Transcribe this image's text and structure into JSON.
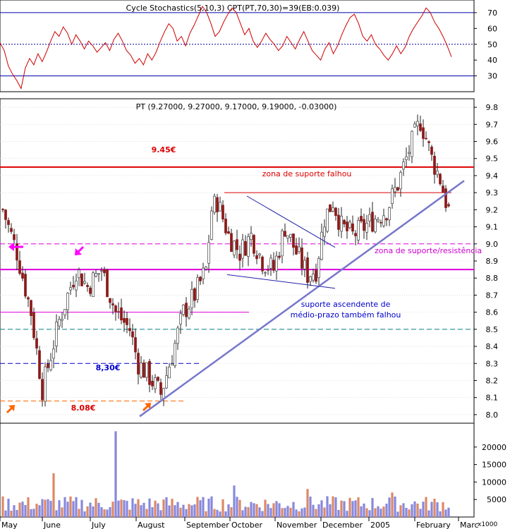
{
  "chart_data": [
    {
      "type": "line",
      "title": "Cycle Stochastics(5,10,3) CPT(PT,70,30)=39(EB:0.039)",
      "ylim": [
        20,
        78
      ],
      "y_ticks": [
        30,
        40,
        50,
        60,
        70
      ],
      "reference_lines": [
        70,
        50,
        30
      ],
      "series": [
        {
          "values": [
            51,
            46,
            36,
            31,
            27,
            22,
            35,
            41,
            37,
            44,
            39,
            45,
            52,
            58,
            55,
            61,
            57,
            50,
            56,
            52,
            47,
            52,
            49,
            45,
            48,
            51,
            46,
            53,
            57,
            52,
            46,
            43,
            38,
            41,
            37,
            44,
            40,
            45,
            52,
            58,
            63,
            60,
            52,
            55,
            49,
            57,
            62,
            68,
            74,
            70,
            63,
            55,
            58,
            64,
            69,
            73,
            70,
            63,
            56,
            60,
            52,
            48,
            52,
            57,
            53,
            50,
            46,
            49,
            55,
            51,
            47,
            53,
            58,
            52,
            46,
            43,
            40,
            47,
            51,
            44,
            49,
            56,
            62,
            67,
            69,
            63,
            55,
            52,
            56,
            50,
            47,
            43,
            40,
            44,
            49,
            44,
            48,
            55,
            60,
            64,
            68,
            73,
            70,
            64,
            60,
            55,
            49,
            42
          ]
        }
      ]
    },
    {
      "type": "bar",
      "title": "PT (9.27000, 9.27000, 9.17000, 9.19000, -0.03000)",
      "xlabel": "",
      "ylabel": "",
      "ylim": [
        7.95,
        9.85
      ],
      "y_ticks": [
        8.0,
        8.1,
        8.2,
        8.3,
        8.4,
        8.5,
        8.6,
        8.7,
        8.8,
        8.9,
        9.0,
        9.1,
        9.2,
        9.3,
        9.4,
        9.5,
        9.6,
        9.7,
        9.8
      ],
      "x_ticks": [
        "May",
        "June",
        "July",
        "August",
        "September",
        "October",
        "November",
        "December",
        "2005",
        "February",
        "Marc"
      ],
      "anchors": [
        [
          0,
          9.2
        ],
        [
          5,
          8.95
        ],
        [
          10,
          8.6
        ],
        [
          14,
          8.15
        ],
        [
          17,
          8.35
        ],
        [
          20,
          8.55
        ],
        [
          26,
          8.85
        ],
        [
          30,
          8.75
        ],
        [
          35,
          8.85
        ],
        [
          40,
          8.6
        ],
        [
          45,
          8.5
        ],
        [
          48,
          8.3
        ],
        [
          52,
          8.22
        ],
        [
          56,
          8.12
        ],
        [
          60,
          8.35
        ],
        [
          64,
          8.6
        ],
        [
          68,
          8.7
        ],
        [
          72,
          8.85
        ],
        [
          74,
          9.2
        ],
        [
          76,
          9.25
        ],
        [
          80,
          9.05
        ],
        [
          84,
          8.95
        ],
        [
          88,
          9.05
        ],
        [
          92,
          8.9
        ],
        [
          96,
          8.85
        ],
        [
          100,
          9.1
        ],
        [
          104,
          8.95
        ],
        [
          108,
          8.82
        ],
        [
          111,
          8.85
        ],
        [
          114,
          9.15
        ],
        [
          117,
          9.25
        ],
        [
          120,
          9.1
        ],
        [
          124,
          9.05
        ],
        [
          128,
          9.1
        ],
        [
          132,
          9.15
        ],
        [
          136,
          9.2
        ],
        [
          140,
          9.35
        ],
        [
          144,
          9.55
        ],
        [
          148,
          9.72
        ],
        [
          150,
          9.62
        ],
        [
          152,
          9.5
        ],
        [
          155,
          9.38
        ],
        [
          157,
          9.25
        ],
        [
          158,
          9.2
        ]
      ],
      "labels": {
        "resistance_top": "9.45€",
        "support_830": "8,30€",
        "support_808": "8.08€",
        "failed_support_zone": "zona de suporte falhou",
        "support_resistance_zone": "zona de suporte/resistência",
        "trend_failed_line1": "suporte ascendente de",
        "trend_failed_line2": "médio-prazo também falhou"
      },
      "horizontal_levels": [
        {
          "price": 9.45,
          "color": "#dd0000",
          "style": "solid"
        },
        {
          "price": 9.3,
          "color": "#dd0000",
          "style": "solid-partial"
        },
        {
          "price": 9.0,
          "color": "#dd00dd",
          "style": "dashed"
        },
        {
          "price": 8.85,
          "color": "#dd00dd",
          "style": "solid"
        },
        {
          "price": 8.6,
          "color": "#dd00dd",
          "style": "solid-partial"
        },
        {
          "price": 8.5,
          "color": "#008080",
          "style": "dashed"
        },
        {
          "price": 8.3,
          "color": "#0000cc",
          "style": "dashed"
        },
        {
          "price": 8.08,
          "color": "#ff6600",
          "style": "dashed"
        }
      ]
    },
    {
      "type": "bar",
      "title": "",
      "ylabel": "x1000",
      "ylim": [
        0,
        26000
      ],
      "y_ticks": [
        5000,
        10000,
        15000,
        20000
      ],
      "unit_label": "x1000",
      "spikes": [
        [
          18,
          12500
        ],
        [
          40,
          24500
        ],
        [
          82,
          9000
        ],
        [
          108,
          8000
        ],
        [
          138,
          7000
        ]
      ]
    }
  ],
  "colors": {
    "stoch_line": "#cc0000",
    "candle_up": "#8b1a1a",
    "candle_down": "#5a2a1a",
    "trendline": "#7777cc",
    "vol_a": "#8888dd",
    "vol_b": "#dd8866"
  }
}
